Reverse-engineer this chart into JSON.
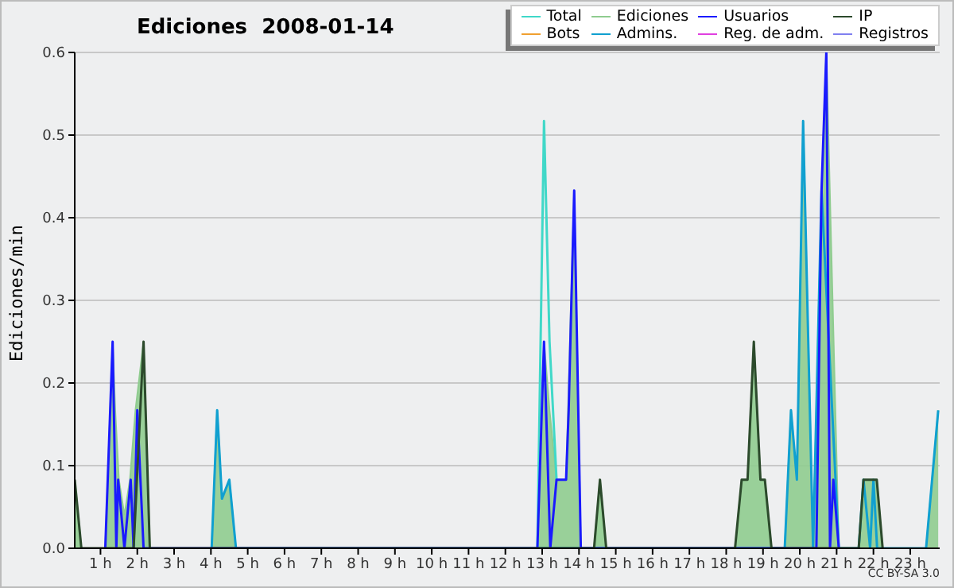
{
  "chart_data": {
    "type": "line",
    "title": "Ediciones  2008-01-14",
    "ylabel": "Ediciones/min",
    "xlim": [
      0.3,
      23.8
    ],
    "xticks": [
      {
        "value": 1,
        "label": "1 h"
      },
      {
        "value": 2,
        "label": "2 h"
      },
      {
        "value": 3,
        "label": "3 h"
      },
      {
        "value": 4,
        "label": "4 h"
      },
      {
        "value": 5,
        "label": "5 h"
      },
      {
        "value": 6,
        "label": "6 h"
      },
      {
        "value": 7,
        "label": "7 h"
      },
      {
        "value": 8,
        "label": "8 h"
      },
      {
        "value": 9,
        "label": "9 h"
      },
      {
        "value": 10,
        "label": "10 h"
      },
      {
        "value": 11,
        "label": "11 h"
      },
      {
        "value": 12,
        "label": "12 h"
      },
      {
        "value": 13,
        "label": "13 h"
      },
      {
        "value": 14,
        "label": "14 h"
      },
      {
        "value": 15,
        "label": "15 h"
      },
      {
        "value": 16,
        "label": "16 h"
      },
      {
        "value": 17,
        "label": "17 h"
      },
      {
        "value": 18,
        "label": "18 h"
      },
      {
        "value": 19,
        "label": "19 h"
      },
      {
        "value": 20,
        "label": "20 h"
      },
      {
        "value": 21,
        "label": "21 h"
      },
      {
        "value": 22,
        "label": "22 h"
      },
      {
        "value": 23,
        "label": "23 h"
      }
    ],
    "ylim": [
      0,
      0.6
    ],
    "yticks": [
      {
        "value": 0,
        "label": "0.0"
      },
      {
        "value": 0.1,
        "label": "0.1"
      },
      {
        "value": 0.2,
        "label": "0.2"
      },
      {
        "value": 0.3,
        "label": "0.3"
      },
      {
        "value": 0.4,
        "label": "0.4"
      },
      {
        "value": 0.5,
        "label": "0.5"
      },
      {
        "value": 0.6,
        "label": "0.6"
      }
    ],
    "grid": "y",
    "legend": "top right",
    "annotations": [
      "CC BY-SA 3.0"
    ],
    "series": [
      {
        "name": "Total",
        "color": "#40d8c8",
        "x": [
          12.87,
          13.05,
          13.2,
          13.39
        ],
        "values": [
          0,
          0.517,
          0.25,
          0.083
        ]
      },
      {
        "name": "Ediciones",
        "type": "area",
        "color": "#8fcc8f",
        "x": [
          0.3,
          0.48,
          1.13,
          1.33,
          1.4,
          1.5,
          1.65,
          1.8,
          1.95,
          2.17,
          2.34,
          4.02,
          4.17,
          4.3,
          4.5,
          4.68,
          12.87,
          13.05,
          13.2,
          13.39,
          13.65,
          13.87,
          14.05,
          14.41,
          14.57,
          14.74,
          18.24,
          18.42,
          18.58,
          18.75,
          18.93,
          19.05,
          19.23,
          19.59,
          19.76,
          19.92,
          20.09,
          20.36,
          20.59,
          20.72,
          21.06,
          21.6,
          21.73,
          22.09,
          22.25,
          23.43,
          23.76
        ],
        "values": [
          0.083,
          0,
          0,
          0.25,
          0.167,
          0.083,
          0.04,
          0.083,
          0.167,
          0.25,
          0,
          0,
          0.167,
          0.06,
          0.083,
          0,
          0,
          0.25,
          0.167,
          0.083,
          0.083,
          0.433,
          0,
          0,
          0.083,
          0,
          0,
          0.083,
          0.083,
          0.25,
          0.083,
          0.083,
          0,
          0,
          0.167,
          0.083,
          0.517,
          0,
          0.433,
          0.6,
          0,
          0,
          0.083,
          0.083,
          0,
          0,
          0.167
        ]
      },
      {
        "name": "Usuarios",
        "color": "#1a1aff",
        "x": [
          1.13,
          1.33,
          1.43,
          1.48,
          1.65,
          1.82,
          1.9,
          2.0,
          2.17,
          12.87,
          13.05,
          13.22,
          13.39,
          13.65,
          13.72,
          13.87,
          14.05,
          20.45,
          20.59,
          20.72,
          20.82,
          20.91,
          21.06
        ],
        "values": [
          0,
          0.25,
          0,
          0.083,
          0,
          0.083,
          0,
          0.167,
          0,
          0,
          0.25,
          0,
          0.083,
          0.083,
          0.167,
          0.433,
          0,
          0,
          0.433,
          0.6,
          0,
          0.083,
          0
        ]
      },
      {
        "name": "IP",
        "color": "#2c4a2c",
        "x": [
          0.3,
          0.48,
          1.9,
          2.17,
          2.34,
          14.41,
          14.57,
          14.74,
          18.24,
          18.42,
          18.58,
          18.75,
          18.93,
          19.05,
          19.23,
          21.6,
          21.73,
          22.09,
          22.25
        ],
        "values": [
          0.083,
          0,
          0,
          0.25,
          0,
          0,
          0.083,
          0,
          0,
          0.083,
          0.083,
          0.25,
          0.083,
          0.083,
          0,
          0,
          0.083,
          0.083,
          0
        ]
      },
      {
        "name": "Bots",
        "color": "#f0a030"
      },
      {
        "name": "Admins.",
        "color": "#10a0d0",
        "x": [
          4.02,
          4.17,
          4.3,
          4.5,
          4.68,
          19.59,
          19.76,
          19.92,
          20.09,
          20.36,
          20.59,
          21.06,
          21.6,
          21.73,
          21.91,
          22.0,
          22.1,
          23.43,
          23.76
        ],
        "values": [
          0,
          0.167,
          0.06,
          0.083,
          0,
          0,
          0.167,
          0.083,
          0.517,
          0,
          0.433,
          0,
          0,
          0.083,
          0,
          0.083,
          0,
          0,
          0.167
        ]
      },
      {
        "name": "Reg. de adm.",
        "color": "#e040e0"
      },
      {
        "name": "Registros",
        "color": "#8080f0"
      }
    ]
  }
}
